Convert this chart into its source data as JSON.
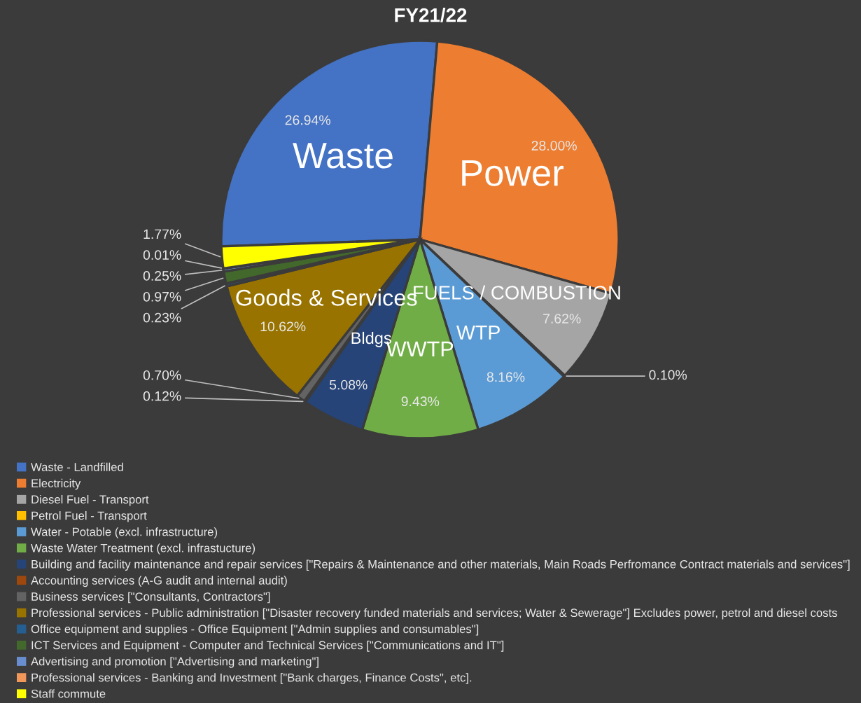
{
  "chart_data": {
    "type": "pie",
    "title": "FY21/22",
    "categories": [
      "Waste - Landfilled",
      "Electricity",
      "Diesel Fuel - Transport",
      "Petrol Fuel - Transport",
      "Water - Potable (excl. infrastructure)",
      "Waste Water Treatment (excl. infrastucture)",
      "Building and facility maintenance and repair services [\"Repairs & Maintenance and other materials, Main Roads Perfromance Contract materials and services\"]",
      "Accounting services (A-G audit and internal audit)",
      "Business services [\"Consultants, Contractors\"]",
      "Professional services - Public administration [\"Disaster recovery funded materials and services; Water & Sewerage\"] Excludes power, petrol and diesel costs",
      "Office equipment and supplies - Office Equipment [\"Admin supplies and consumables\"]",
      "ICT Services and Equipment - Computer and Technical Services [\"Communications and IT\"]",
      "Advertising and promotion [\"Advertising and marketing\"]",
      "Professional services - Banking and Investment [\"Bank charges, Finance Costs\", etc].",
      "Staff commute"
    ],
    "values": [
      26.94,
      28.0,
      7.62,
      0.1,
      8.16,
      9.43,
      5.08,
      0.12,
      0.7,
      10.62,
      0.23,
      0.97,
      0.25,
      0.01,
      1.77
    ],
    "colors": [
      "#4472c4",
      "#ed7d31",
      "#a5a5a5",
      "#ffc000",
      "#5b9bd5",
      "#70ad47",
      "#264478",
      "#9e480e",
      "#636363",
      "#997300",
      "#255e91",
      "#43682b",
      "#698ed0",
      "#f1975a",
      "#ffff00"
    ],
    "value_labels": [
      "26.94%",
      "28.00%",
      "7.62%",
      "0.10%",
      "8.16%",
      "9.43%",
      "5.08%",
      "0.12%",
      "0.70%",
      "10.62%",
      "0.23%",
      "0.97%",
      "0.25%",
      "0.01%",
      "1.77%"
    ],
    "legend": "bottom",
    "annotations": [
      {
        "text": "Waste",
        "x": "Waste - Landfilled"
      },
      {
        "text": "Power",
        "x": "Electricity"
      },
      {
        "text": "FUELS / COMBUSTION",
        "x": "Diesel Fuel - Transport"
      },
      {
        "text": "WTP",
        "x": "Water - Potable (excl. infrastructure)"
      },
      {
        "text": "WWTP",
        "x": "Waste Water Treatment (excl. infrastucture)"
      },
      {
        "text": "Bldgs",
        "x": "Building and facility maintenance and repair services [\"Repairs & Maintenance and other materials, Main Roads Perfromance Contract materials and services\"]"
      },
      {
        "text": "Goods & Services",
        "x": "Professional services - Public administration [\"Disaster recovery funded materials and services; Water & Sewerage\"] Excludes power, petrol and diesel costs"
      }
    ]
  }
}
